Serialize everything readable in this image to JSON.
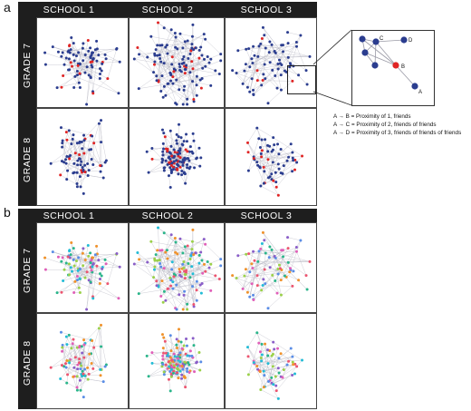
{
  "panel_a": {
    "letter": "a"
  },
  "panel_b": {
    "letter": "b"
  },
  "columns": [
    "SCHOOL 1",
    "SCHOOL 2",
    "SCHOOL 3"
  ],
  "rows": [
    "GRADE 7",
    "GRADE 8"
  ],
  "inset": {
    "nodes": [
      {
        "label": "",
        "color": "#2b3d8f"
      },
      {
        "label": "C",
        "color": "#2b3d8f"
      },
      {
        "label": "D",
        "color": "#2b3d8f"
      },
      {
        "label": "",
        "color": "#2b3d8f"
      },
      {
        "label": "",
        "color": "#2b3d8f"
      },
      {
        "label": "B",
        "color": "#e02424"
      },
      {
        "label": "A",
        "color": "#2b3d8f"
      }
    ]
  },
  "legend": [
    "A → B = Proximity of 1, friends",
    "A → C = Proximity of 2, friends of friends",
    "A → D = Proximity of 3, friends of friends of friends"
  ],
  "colors": {
    "panel_a_nodes": [
      "#2b3d8f",
      "#e02424"
    ],
    "panel_b_nodes": [
      "#22bcd6",
      "#ec5570",
      "#f0922b",
      "#8a5ec8",
      "#2ab58a",
      "#e05fb8",
      "#5a8de6",
      "#9bd14a"
    ],
    "edge": "#b9b9c4",
    "header_bg": "#1e1e1e"
  }
}
